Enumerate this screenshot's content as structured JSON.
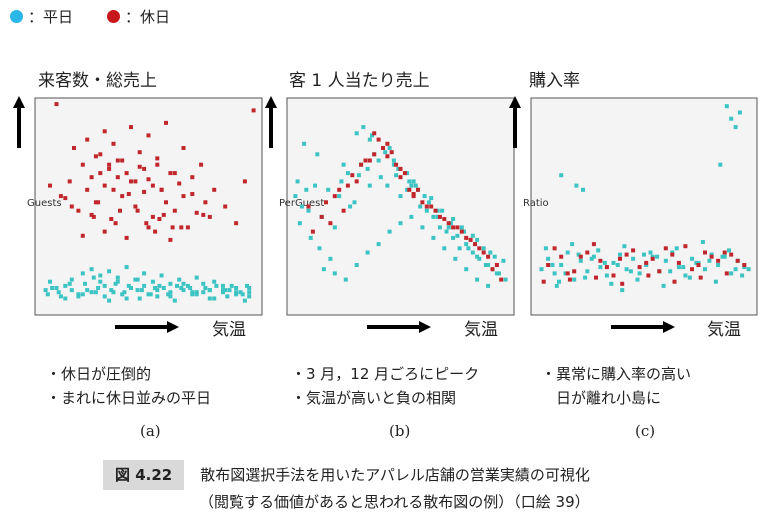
{
  "legend": [
    {
      "label": "：平日",
      "color": "#29b6e8"
    },
    {
      "label": "：休日",
      "color": "#c8171c"
    }
  ],
  "colors": {
    "weekday_pt": "#3cc3c3",
    "holiday_pt": "#c0262b",
    "panel_bg": "#f4f4f4"
  },
  "panels": [
    {
      "title": "来客数・総売上",
      "ylabel": "Guests",
      "xlabel": "気温",
      "notes": [
        "・休日が圧倒的",
        "・まれに休日並みの平日"
      ],
      "sublabel": "(a)"
    },
    {
      "title": "客 1 人当たり売上",
      "ylabel": "PerGuest",
      "xlabel": "気温",
      "notes": [
        "・3 月，12 月ごろにピーク",
        "・気温が高いと負の相関"
      ],
      "sublabel": "(b)"
    },
    {
      "title": "購入率",
      "ylabel": "Ratio",
      "xlabel": "気温",
      "notes": [
        "・異常に購入率の高い",
        "　日が離れ小島に"
      ],
      "sublabel": "(c)"
    }
  ],
  "caption": {
    "label": "図 4.22",
    "line1": "散布図選択手法を用いたアパレル店舗の営業実績の可視化",
    "line2": "（閲覧する価値があると思われる散布図の例）（口絵 39）"
  },
  "chart_data": [
    {
      "type": "scatter",
      "title": "来客数・総売上",
      "xlabel": "気温",
      "ylabel": "Guests",
      "xlim": [
        0,
        100
      ],
      "ylim": [
        0,
        100
      ],
      "series": [
        {
          "name": "平日",
          "x": [
            3,
            6,
            9,
            12,
            15,
            18,
            21,
            24,
            27,
            30,
            33,
            36,
            39,
            42,
            45,
            48,
            51,
            54,
            57,
            60,
            63,
            66,
            69,
            72,
            75,
            78,
            81,
            84,
            87,
            90,
            93,
            96,
            5,
            10,
            15,
            20,
            25,
            30,
            35,
            40,
            45,
            50,
            55,
            60,
            65,
            70,
            75,
            80,
            85,
            90,
            95,
            8,
            14,
            22,
            28,
            34,
            41,
            47,
            53,
            59,
            66,
            72,
            78,
            84,
            90,
            96,
            20,
            24,
            28,
            32,
            36,
            40,
            44,
            48,
            52,
            56,
            60,
            64,
            68,
            72,
            76,
            80,
            84,
            88,
            92,
            96,
            4,
            12,
            18,
            26,
            32,
            38,
            46,
            54,
            62,
            70,
            78,
            86,
            94
          ],
          "y": [
            10,
            11,
            9,
            12,
            10,
            8,
            13,
            9,
            11,
            12,
            10,
            14,
            9,
            11,
            10,
            12,
            8,
            10,
            11,
            9,
            12,
            10,
            11,
            8,
            9,
            10,
            12,
            9,
            10,
            11,
            8,
            9,
            14,
            7,
            15,
            8,
            16,
            7,
            13,
            6,
            15,
            8,
            12,
            7,
            11,
            9,
            13,
            6,
            10,
            8,
            12,
            11,
            13,
            10,
            14,
            9,
            12,
            10,
            11,
            8,
            13,
            9,
            10,
            12,
            9,
            7,
            18,
            20,
            17,
            19,
            16,
            21,
            15,
            18,
            14,
            17,
            13,
            15,
            12,
            16,
            11,
            14,
            10,
            12,
            9,
            11,
            8,
            6,
            7,
            9,
            5,
            8,
            6,
            7,
            5,
            8,
            6,
            7,
            5
          ]
        },
        {
          "name": "休日",
          "x": [
            5,
            10,
            14,
            18,
            20,
            22,
            24,
            26,
            28,
            30,
            32,
            34,
            36,
            38,
            40,
            42,
            44,
            46,
            48,
            50,
            52,
            54,
            56,
            58,
            60,
            62,
            64,
            66,
            68,
            70,
            72,
            74,
            76,
            78,
            80,
            85,
            90,
            94,
            16,
            22,
            26,
            30,
            34,
            38,
            42,
            46,
            50,
            54,
            58,
            62,
            66,
            70,
            25,
            35,
            45,
            55,
            65,
            75,
            20,
            30,
            40,
            50,
            60,
            28,
            32,
            36,
            44,
            48,
            52,
            56,
            12,
            15,
            24,
            27,
            33,
            37,
            41,
            49,
            53,
            57,
            61,
            8,
            98
          ],
          "y": [
            60,
            55,
            62,
            48,
            70,
            58,
            64,
            52,
            75,
            60,
            68,
            58,
            72,
            55,
            66,
            62,
            50,
            69,
            57,
            63,
            45,
            73,
            58,
            52,
            66,
            48,
            61,
            55,
            40,
            64,
            47,
            70,
            52,
            45,
            58,
            50,
            42,
            62,
            78,
            82,
            74,
            86,
            80,
            72,
            88,
            76,
            84,
            70,
            90,
            66,
            78,
            56,
            45,
            42,
            48,
            44,
            40,
            46,
            36,
            38,
            35,
            40,
            34,
            66,
            70,
            64,
            62,
            68,
            60,
            58,
            54,
            50,
            46,
            52,
            44,
            48,
            56,
            42,
            38,
            46,
            40,
            99,
            96
          ]
        }
      ]
    },
    {
      "type": "scatter",
      "title": "客 1 人当たり売上",
      "xlabel": "気温",
      "ylabel": "PerGuest",
      "xlim": [
        0,
        100
      ],
      "ylim": [
        0,
        100
      ],
      "series": [
        {
          "name": "平日",
          "x": [
            2,
            5,
            8,
            11,
            14,
            17,
            20,
            23,
            26,
            29,
            32,
            35,
            38,
            41,
            44,
            47,
            50,
            53,
            56,
            59,
            62,
            65,
            68,
            71,
            74,
            77,
            80,
            83,
            86,
            89,
            92,
            95,
            98,
            4,
            9,
            13,
            18,
            22,
            27,
            31,
            36,
            40,
            45,
            49,
            54,
            58,
            63,
            67,
            72,
            76,
            81,
            85,
            90,
            94,
            6,
            12,
            24,
            30,
            36,
            42,
            48,
            55,
            61,
            67,
            73,
            79,
            85,
            91,
            97,
            15,
            20,
            25,
            30,
            35,
            40,
            45,
            50,
            55,
            60,
            65,
            70,
            75,
            80,
            85,
            90,
            3,
            7,
            33,
            37,
            43,
            47,
            53,
            57,
            64,
            69,
            74,
            78,
            83,
            88,
            93
          ],
          "y": [
            55,
            50,
            48,
            60,
            45,
            58,
            40,
            62,
            66,
            52,
            70,
            68,
            75,
            64,
            60,
            72,
            55,
            58,
            62,
            50,
            48,
            45,
            40,
            38,
            35,
            30,
            32,
            28,
            25,
            22,
            20,
            18,
            15,
            42,
            35,
            30,
            25,
            55,
            50,
            65,
            60,
            72,
            78,
            68,
            62,
            58,
            52,
            45,
            40,
            36,
            30,
            26,
            22,
            18,
            80,
            75,
            70,
            85,
            82,
            78,
            65,
            60,
            55,
            48,
            42,
            38,
            34,
            28,
            24,
            20,
            18,
            15,
            22,
            28,
            32,
            38,
            42,
            45,
            40,
            35,
            30,
            25,
            20,
            15,
            12,
            62,
            58,
            88,
            84,
            76,
            70,
            66,
            60,
            54,
            48,
            44,
            40,
            36,
            30,
            26
          ]
        },
        {
          "name": "休日",
          "x": [
            8,
            14,
            20,
            26,
            32,
            38,
            44,
            50,
            56,
            62,
            68,
            74,
            80,
            86,
            92,
            96,
            10,
            18,
            24,
            30,
            36,
            42,
            48,
            54,
            60,
            66,
            72,
            78,
            84,
            90,
            94,
            28,
            34,
            40,
            46,
            52,
            58,
            64,
            70,
            76,
            82,
            88,
            16,
            22,
            38,
            44,
            50,
            56
          ],
          "y": [
            50,
            45,
            55,
            60,
            70,
            75,
            80,
            68,
            55,
            50,
            45,
            40,
            35,
            30,
            20,
            15,
            38,
            42,
            48,
            62,
            72,
            78,
            70,
            58,
            52,
            48,
            42,
            38,
            32,
            26,
            22,
            65,
            72,
            82,
            76,
            66,
            58,
            50,
            44,
            40,
            34,
            28,
            52,
            58,
            85,
            74,
            64,
            56
          ]
        }
      ]
    },
    {
      "type": "scatter",
      "title": "購入率",
      "xlabel": "気温",
      "ylabel": "Ratio",
      "xlim": [
        0,
        100
      ],
      "ylim": [
        0,
        100
      ],
      "series": [
        {
          "name": "平日",
          "x": [
            3,
            6,
            9,
            12,
            15,
            18,
            21,
            24,
            27,
            30,
            33,
            36,
            39,
            42,
            45,
            48,
            51,
            54,
            57,
            60,
            63,
            66,
            69,
            72,
            75,
            78,
            81,
            84,
            87,
            90,
            93,
            96,
            5,
            11,
            17,
            23,
            29,
            35,
            41,
            47,
            53,
            59,
            65,
            71,
            77,
            83,
            89,
            95,
            8,
            20,
            32,
            44,
            56,
            68,
            80,
            92,
            14,
            26,
            38,
            50,
            62,
            74,
            86,
            98,
            10,
            40,
            88,
            90,
            92,
            94,
            85,
            12,
            19,
            22
          ],
          "y": [
            20,
            25,
            18,
            22,
            28,
            15,
            24,
            19,
            26,
            21,
            17,
            23,
            27,
            20,
            25,
            18,
            22,
            26,
            19,
            24,
            28,
            21,
            17,
            25,
            23,
            20,
            27,
            22,
            26,
            18,
            24,
            21,
            30,
            14,
            32,
            16,
            29,
            13,
            31,
            15,
            28,
            12,
            30,
            16,
            33,
            14,
            29,
            17,
            22,
            27,
            23,
            19,
            26,
            21,
            24,
            20,
            18,
            25,
            22,
            27,
            19,
            23,
            26,
            20,
            12,
            10,
            98,
            92,
            88,
            95,
            70,
            65,
            60,
            58
          ],
          "note": "outliers near top-right and upper-left"
        },
        {
          "name": "休日",
          "x": [
            6,
            12,
            18,
            24,
            30,
            36,
            42,
            48,
            54,
            60,
            66,
            72,
            78,
            84,
            90,
            96,
            9,
            15,
            21,
            27,
            33,
            39,
            45,
            51,
            57,
            63,
            69,
            75,
            81,
            87,
            93,
            4,
            16,
            28,
            40,
            52,
            64,
            76,
            88
          ],
          "y": [
            22,
            26,
            19,
            28,
            24,
            17,
            27,
            21,
            25,
            30,
            23,
            20,
            28,
            24,
            27,
            22,
            30,
            18,
            26,
            32,
            21,
            25,
            29,
            23,
            19,
            27,
            31,
            22,
            26,
            28,
            24,
            14,
            15,
            16,
            13,
            17,
            14,
            16,
            18
          ]
        }
      ]
    }
  ]
}
